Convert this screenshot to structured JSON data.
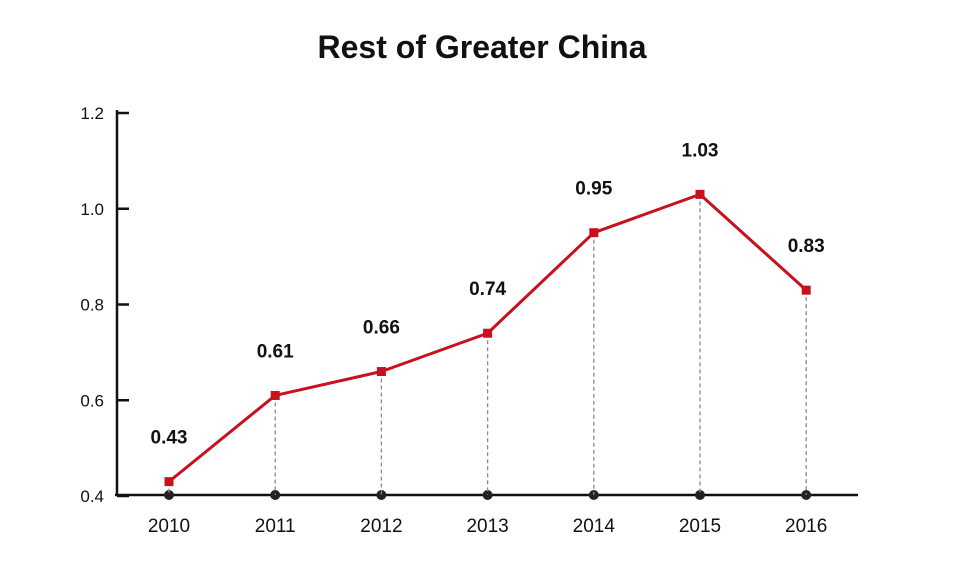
{
  "chart_data": {
    "type": "line",
    "title": "Rest of Greater China",
    "xlabel": "",
    "ylabel": "",
    "categories": [
      "2010",
      "2011",
      "2012",
      "2013",
      "2014",
      "2015",
      "2016"
    ],
    "series": [
      {
        "values": [
          0.43,
          0.61,
          0.66,
          0.74,
          0.95,
          1.03,
          0.83
        ],
        "data_labels": [
          "0.43",
          "0.61",
          "0.66",
          "0.74",
          "0.95",
          "1.03",
          "0.83"
        ],
        "color": "#c8101e"
      }
    ],
    "ylim": [
      0.4,
      1.2
    ],
    "yticks": [
      0.4,
      0.6,
      0.8,
      1.0,
      1.2
    ],
    "ytick_labels": [
      "0.4",
      "0.6",
      "0.8",
      "1.0",
      "1.2"
    ],
    "grid": false,
    "drop_lines": true,
    "axis_color": "#111111",
    "drop_line_color": "#8a8a8a",
    "marker_color": "#c8101e",
    "axis_dot_color": "#222222"
  }
}
